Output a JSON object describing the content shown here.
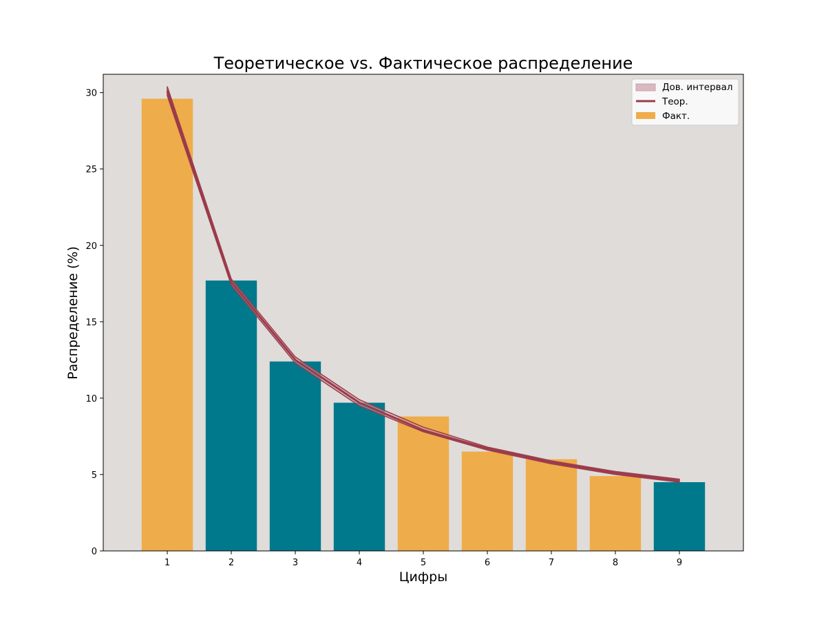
{
  "chart_data": {
    "type": "bar",
    "title": "Теоретическое vs. Фактическое распределение",
    "xlabel": "Цифры",
    "ylabel": "Распределение (%)",
    "categories": [
      "1",
      "2",
      "3",
      "4",
      "5",
      "6",
      "7",
      "8",
      "9"
    ],
    "ylim": [
      0,
      31.2
    ],
    "yticks": [
      0,
      5,
      10,
      15,
      20,
      25,
      30
    ],
    "grid": false,
    "legend_position": "top-right",
    "series": [
      {
        "name": "Факт.",
        "kind": "bar",
        "values": [
          29.6,
          17.7,
          12.4,
          9.7,
          8.8,
          6.5,
          6.0,
          4.9,
          4.5
        ]
      },
      {
        "name": "Теор.",
        "kind": "line",
        "values": [
          30.1,
          17.6,
          12.5,
          9.7,
          7.9,
          6.7,
          5.8,
          5.1,
          4.6
        ]
      },
      {
        "name": "Дов. интервал",
        "kind": "band",
        "lower": [
          29.8,
          17.4,
          12.3,
          9.5,
          7.8,
          6.6,
          5.7,
          5.0,
          4.5
        ],
        "upper": [
          30.4,
          17.8,
          12.7,
          9.9,
          8.1,
          6.8,
          5.9,
          5.2,
          4.7
        ]
      }
    ],
    "colors": {
      "background": "#e0dcd9",
      "bar_within": "#eeac4a",
      "bar_outside": "#00798c",
      "line": "#9b3a4a",
      "band": "#c8a0a8"
    },
    "bar_color_keys": [
      "bar_within",
      "bar_outside",
      "bar_outside",
      "bar_outside",
      "bar_within",
      "bar_within",
      "bar_within",
      "bar_within",
      "bar_outside"
    ]
  }
}
